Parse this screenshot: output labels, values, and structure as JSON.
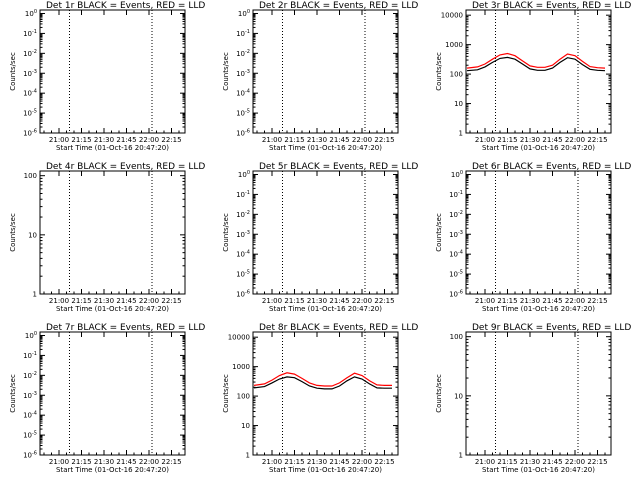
{
  "chart_data": [
    {
      "id": "1r",
      "type": "line",
      "title": "Det 1r BLACK = Events, RED = LLD",
      "scale": "log",
      "ylabel": "Counts/sec",
      "xlabel": "Start Time (01-Oct-16 20:47:20)",
      "yticks": [
        "10^-6",
        "10^-5",
        "10^-4",
        "10^-3",
        "10^-2",
        "10^-1",
        "10^0"
      ],
      "ylim": [
        1e-06,
        1.5
      ],
      "xticks": [
        "21:00",
        "21:15",
        "21:30",
        "21:45",
        "22:00",
        "22:15"
      ],
      "vlines": [
        "21:07",
        "22:02"
      ],
      "series": []
    },
    {
      "id": "2r",
      "type": "line",
      "title": "Det 2r BLACK = Events, RED = LLD",
      "scale": "log",
      "ylabel": "Counts/sec",
      "xlabel": "Start Time (01-Oct-16 20:47:20)",
      "yticks": [
        "10^-6",
        "10^-5",
        "10^-4",
        "10^-3",
        "10^-2",
        "10^-1",
        "10^0"
      ],
      "ylim": [
        1e-06,
        1.5
      ],
      "xticks": [
        "21:00",
        "21:15",
        "21:30",
        "21:45",
        "22:00",
        "22:15"
      ],
      "vlines": [
        "21:07",
        "22:02"
      ],
      "series": []
    },
    {
      "id": "3r",
      "type": "line",
      "title": "Det 3r BLACK = Events, RED = LLD",
      "scale": "log",
      "ylabel": "Counts/sec",
      "xlabel": "Start Time (01-Oct-16 20:47:20)",
      "yticks": [
        "1",
        "10",
        "100",
        "1000",
        "10000"
      ],
      "ylim": [
        1,
        15000
      ],
      "xticks": [
        "21:00",
        "21:15",
        "21:30",
        "21:45",
        "22:00",
        "22:15"
      ],
      "vlines": [
        "21:07",
        "22:02"
      ],
      "series": [
        {
          "color": "#ff0000",
          "x": [
            "20:48",
            "20:55",
            "21:00",
            "21:05",
            "21:10",
            "21:15",
            "21:20",
            "21:25",
            "21:30",
            "21:35",
            "21:40",
            "21:45",
            "21:50",
            "21:55",
            "22:00",
            "22:05",
            "22:10",
            "22:15",
            "22:20"
          ],
          "values": [
            160,
            175,
            220,
            320,
            450,
            500,
            420,
            280,
            190,
            170,
            170,
            200,
            320,
            480,
            420,
            270,
            180,
            165,
            160
          ]
        },
        {
          "color": "#000000",
          "x": [
            "20:48",
            "20:55",
            "21:00",
            "21:05",
            "21:10",
            "21:15",
            "21:20",
            "21:25",
            "21:30",
            "21:35",
            "21:40",
            "21:45",
            "21:50",
            "21:55",
            "22:00",
            "22:05",
            "22:10",
            "22:15",
            "22:20"
          ],
          "values": [
            130,
            140,
            175,
            250,
            340,
            370,
            320,
            220,
            150,
            135,
            135,
            160,
            250,
            360,
            320,
            210,
            145,
            135,
            130
          ]
        }
      ]
    },
    {
      "id": "4r",
      "type": "line",
      "title": "Det 4r BLACK = Events, RED = LLD",
      "scale": "log",
      "ylabel": "Counts/sec",
      "xlabel": "Start Time (01-Oct-16 20:47:20)",
      "yticks": [
        "1",
        "10",
        "100"
      ],
      "ylim": [
        1,
        120
      ],
      "xticks": [
        "21:00",
        "21:15",
        "21:30",
        "21:45",
        "22:00",
        "22:15"
      ],
      "vlines": [
        "21:07",
        "22:02"
      ],
      "series": []
    },
    {
      "id": "5r",
      "type": "line",
      "title": "Det 5r BLACK = Events, RED = LLD",
      "scale": "log",
      "ylabel": "Counts/sec",
      "xlabel": "Start Time (01-Oct-16 20:47:20)",
      "yticks": [
        "10^-6",
        "10^-5",
        "10^-4",
        "10^-3",
        "10^-2",
        "10^-1",
        "10^0"
      ],
      "ylim": [
        1e-06,
        1.5
      ],
      "xticks": [
        "21:00",
        "21:15",
        "21:30",
        "21:45",
        "22:00",
        "22:15"
      ],
      "vlines": [
        "21:07",
        "22:02"
      ],
      "series": []
    },
    {
      "id": "6r",
      "type": "line",
      "title": "Det 6r BLACK = Events, RED = LLD",
      "scale": "log",
      "ylabel": "Counts/sec",
      "xlabel": "Start Time (01-Oct-16 20:47:20)",
      "yticks": [
        "10^-6",
        "10^-5",
        "10^-4",
        "10^-3",
        "10^-2",
        "10^-1",
        "10^0"
      ],
      "ylim": [
        1e-06,
        1.5
      ],
      "xticks": [
        "21:00",
        "21:15",
        "21:30",
        "21:45",
        "22:00",
        "22:15"
      ],
      "vlines": [
        "21:07",
        "22:02"
      ],
      "series": []
    },
    {
      "id": "7r",
      "type": "line",
      "title": "Det 7r BLACK = Events, RED = LLD",
      "scale": "log",
      "ylabel": "Counts/sec",
      "xlabel": "Start Time (01-Oct-16 20:47:20)",
      "yticks": [
        "10^-6",
        "10^-5",
        "10^-4",
        "10^-3",
        "10^-2",
        "10^-1",
        "10^0"
      ],
      "ylim": [
        1e-06,
        1.5
      ],
      "xticks": [
        "21:00",
        "21:15",
        "21:30",
        "21:45",
        "22:00",
        "22:15"
      ],
      "vlines": [
        "21:07",
        "22:02"
      ],
      "series": []
    },
    {
      "id": "8r",
      "type": "line",
      "title": "Det 8r BLACK = Events, RED = LLD",
      "scale": "log",
      "ylabel": "Counts/sec",
      "xlabel": "Start Time (01-Oct-16 20:47:20)",
      "yticks": [
        "1",
        "10",
        "100",
        "1000",
        "10000"
      ],
      "ylim": [
        1,
        15000
      ],
      "xticks": [
        "21:00",
        "21:15",
        "21:30",
        "21:45",
        "22:00",
        "22:15"
      ],
      "vlines": [
        "21:07",
        "22:02"
      ],
      "series": [
        {
          "color": "#ff0000",
          "x": [
            "20:48",
            "20:55",
            "21:00",
            "21:05",
            "21:10",
            "21:15",
            "21:20",
            "21:25",
            "21:30",
            "21:35",
            "21:40",
            "21:45",
            "21:50",
            "21:55",
            "22:00",
            "22:05",
            "22:10",
            "22:15",
            "22:20"
          ],
          "values": [
            230,
            260,
            350,
            500,
            620,
            560,
            400,
            280,
            230,
            220,
            220,
            280,
            420,
            600,
            500,
            330,
            240,
            230,
            230
          ]
        },
        {
          "color": "#000000",
          "x": [
            "20:48",
            "20:55",
            "21:00",
            "21:05",
            "21:10",
            "21:15",
            "21:20",
            "21:25",
            "21:30",
            "21:35",
            "21:40",
            "21:45",
            "21:50",
            "21:55",
            "22:00",
            "22:05",
            "22:10",
            "22:15",
            "22:20"
          ],
          "values": [
            190,
            210,
            280,
            380,
            450,
            420,
            310,
            220,
            185,
            175,
            175,
            220,
            330,
            450,
            380,
            260,
            190,
            185,
            185
          ]
        }
      ]
    },
    {
      "id": "9r",
      "type": "line",
      "title": "Det 9r BLACK = Events, RED = LLD",
      "scale": "log",
      "ylabel": "Counts/sec",
      "xlabel": "Start Time (01-Oct-16 20:47:20)",
      "yticks": [
        "1",
        "10",
        "100"
      ],
      "ylim": [
        1,
        120
      ],
      "xticks": [
        "21:00",
        "21:15",
        "21:30",
        "21:45",
        "22:00",
        "22:15"
      ],
      "vlines": [
        "21:07",
        "22:02"
      ],
      "series": []
    }
  ]
}
